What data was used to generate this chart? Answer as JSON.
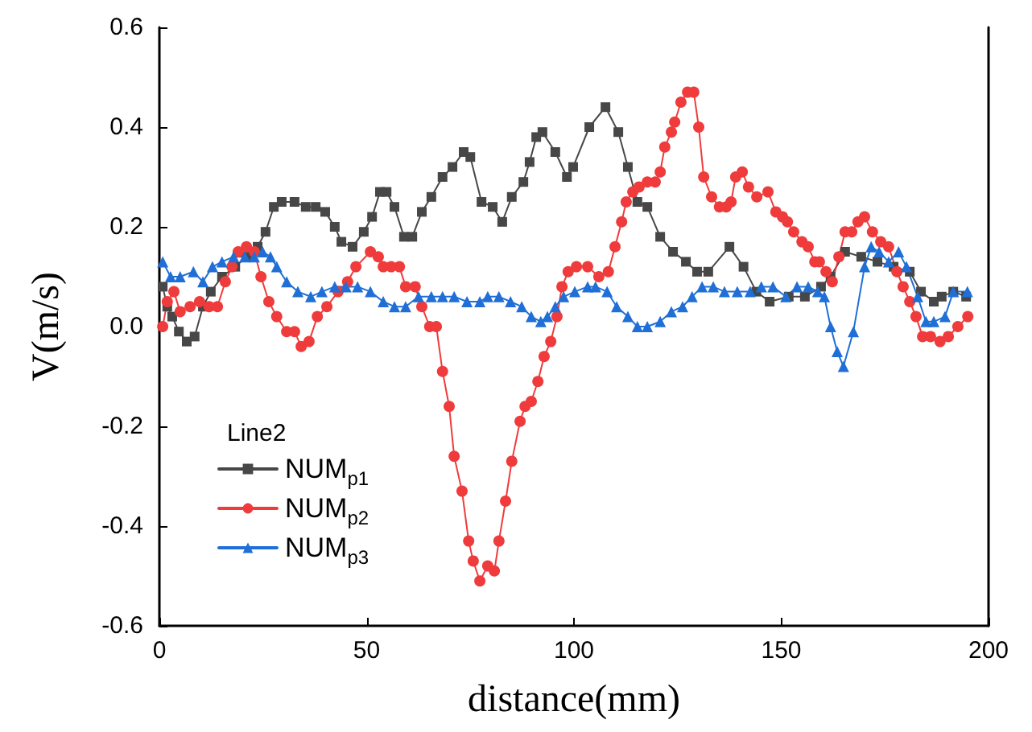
{
  "chart_data": {
    "type": "line",
    "xlabel": "distance(mm)",
    "ylabel": "V(m/s)",
    "legend_title": "Line2",
    "legend": "left",
    "grid": false,
    "xlim": [
      0,
      200
    ],
    "xticks": [
      0,
      50,
      100,
      150,
      200
    ],
    "ylim": [
      -0.6,
      0.6
    ],
    "yticks": [
      {
        "value": -0.6,
        "label": "-0.6"
      },
      {
        "value": -0.4,
        "label": "-0.4"
      },
      {
        "value": -0.2,
        "label": "-0.2"
      },
      {
        "value": 0,
        "label": "0.0"
      },
      {
        "value": 0.2,
        "label": "0.2"
      },
      {
        "value": 0.4,
        "label": "0.4"
      },
      {
        "value": 0.6,
        "label": "0.6"
      }
    ],
    "series": [
      {
        "name": "NUM$_{p1}$",
        "color": "#474747",
        "marker": "square",
        "x": [
          0.8,
          1.9,
          3.1,
          4.7,
          6.6,
          8.5,
          10.5,
          12.4,
          15.1,
          18.3,
          21.0,
          23.7,
          25.6,
          27.6,
          29.5,
          32.6,
          35.3,
          37.7,
          40.0,
          42.3,
          43.9,
          46.6,
          49.3,
          51.3,
          53.2,
          54.8,
          56.7,
          59.0,
          61.0,
          63.3,
          65.6,
          68.3,
          70.7,
          73.4,
          75.0,
          77.7,
          80.4,
          82.7,
          85.0,
          87.8,
          89.3,
          90.9,
          92.4,
          95.5,
          98.3,
          99.8,
          103.7,
          107.6,
          110.7,
          113.0,
          115.3,
          117.7,
          120.8,
          123.9,
          127.0,
          129.7,
          132.4,
          137.5,
          140.9,
          144.0,
          147.2,
          151.8,
          155.7,
          159.6,
          161.9,
          165.4,
          169.3,
          173.2,
          177.1,
          181.0,
          183.7,
          186.8,
          188.7,
          191.5,
          194.6
        ],
        "values": [
          0.08,
          0.04,
          0.02,
          -0.01,
          -0.03,
          -0.02,
          0.04,
          0.07,
          0.1,
          0.12,
          0.14,
          0.16,
          0.19,
          0.24,
          0.25,
          0.25,
          0.24,
          0.24,
          0.23,
          0.2,
          0.17,
          0.16,
          0.19,
          0.22,
          0.27,
          0.27,
          0.24,
          0.18,
          0.18,
          0.23,
          0.26,
          0.3,
          0.32,
          0.35,
          0.34,
          0.25,
          0.24,
          0.21,
          0.26,
          0.29,
          0.33,
          0.38,
          0.39,
          0.35,
          0.3,
          0.32,
          0.4,
          0.44,
          0.39,
          0.32,
          0.25,
          0.24,
          0.18,
          0.15,
          0.13,
          0.11,
          0.11,
          0.16,
          0.12,
          0.07,
          0.05,
          0.06,
          0.06,
          0.08,
          0.1,
          0.15,
          0.14,
          0.13,
          0.12,
          0.11,
          0.07,
          0.05,
          0.06,
          0.07,
          0.06
        ]
      },
      {
        "name": "NUM$_{p2}$",
        "color": "#ef3b3b",
        "marker": "circle",
        "x": [
          0.8,
          1.9,
          3.5,
          5.0,
          7.4,
          9.7,
          12.0,
          14.0,
          15.9,
          17.5,
          19.0,
          21.0,
          22.9,
          24.5,
          26.4,
          28.3,
          30.7,
          32.6,
          34.2,
          36.1,
          38.1,
          40.4,
          43.1,
          45.4,
          47.4,
          50.9,
          52.8,
          54.0,
          55.9,
          57.9,
          59.4,
          61.7,
          63.3,
          65.2,
          66.8,
          68.3,
          69.9,
          71.1,
          73.0,
          74.6,
          75.7,
          77.3,
          79.2,
          80.8,
          81.9,
          83.5,
          85.0,
          87.0,
          88.2,
          89.7,
          91.3,
          92.8,
          94.4,
          95.9,
          97.1,
          98.6,
          100.6,
          103.3,
          106.0,
          108.3,
          109.9,
          111.5,
          112.6,
          114.2,
          115.7,
          117.7,
          119.6,
          120.8,
          121.9,
          123.5,
          124.3,
          125.8,
          127.4,
          128.9,
          130.1,
          131.3,
          133.2,
          135.1,
          136.7,
          137.9,
          139.0,
          140.6,
          142.1,
          144.1,
          146.8,
          148.7,
          150.3,
          151.5,
          153.0,
          155.0,
          156.5,
          158.1,
          159.2,
          160.8,
          162.3,
          163.9,
          165.4,
          167.0,
          168.5,
          170.1,
          172.0,
          174.0,
          175.9,
          177.9,
          179.4,
          181.0,
          182.5,
          184.1,
          186.0,
          188.3,
          190.3,
          192.6,
          195.0
        ],
        "values": [
          0.0,
          0.05,
          0.07,
          0.03,
          0.04,
          0.05,
          0.04,
          0.04,
          0.09,
          0.12,
          0.15,
          0.16,
          0.15,
          0.1,
          0.05,
          0.02,
          -0.01,
          -0.01,
          -0.04,
          -0.03,
          0.02,
          0.04,
          0.07,
          0.09,
          0.12,
          0.15,
          0.14,
          0.12,
          0.12,
          0.12,
          0.08,
          0.08,
          0.04,
          0.0,
          0.0,
          -0.09,
          -0.16,
          -0.26,
          -0.33,
          -0.43,
          -0.47,
          -0.51,
          -0.48,
          -0.49,
          -0.43,
          -0.35,
          -0.27,
          -0.19,
          -0.16,
          -0.15,
          -0.11,
          -0.06,
          -0.03,
          0.02,
          0.08,
          0.11,
          0.12,
          0.12,
          0.1,
          0.11,
          0.16,
          0.21,
          0.25,
          0.27,
          0.28,
          0.29,
          0.29,
          0.31,
          0.36,
          0.39,
          0.41,
          0.45,
          0.47,
          0.47,
          0.4,
          0.3,
          0.26,
          0.24,
          0.24,
          0.25,
          0.3,
          0.31,
          0.28,
          0.26,
          0.27,
          0.23,
          0.22,
          0.21,
          0.19,
          0.17,
          0.16,
          0.13,
          0.13,
          0.11,
          0.09,
          0.14,
          0.19,
          0.19,
          0.21,
          0.22,
          0.19,
          0.17,
          0.16,
          0.11,
          0.08,
          0.05,
          0.02,
          -0.02,
          -0.02,
          -0.03,
          -0.02,
          0.0,
          0.02
        ]
      },
      {
        "name": "NUM$_{p3}$",
        "color": "#1f6fd6",
        "marker": "triangle",
        "x": [
          0.8,
          2.7,
          5.0,
          8.2,
          10.5,
          12.8,
          15.1,
          17.9,
          20.6,
          22.9,
          24.9,
          26.8,
          28.3,
          30.7,
          33.4,
          36.5,
          39.2,
          42.3,
          45.0,
          47.8,
          50.9,
          54.0,
          56.7,
          59.4,
          62.5,
          65.6,
          68.3,
          71.1,
          74.2,
          77.3,
          79.2,
          81.9,
          84.7,
          87.4,
          89.7,
          92.0,
          93.6,
          95.5,
          97.5,
          100.2,
          103.3,
          105.2,
          108.0,
          110.3,
          113.0,
          115.3,
          117.7,
          120.8,
          123.5,
          126.2,
          128.5,
          130.9,
          133.6,
          136.3,
          139.4,
          142.5,
          145.2,
          148.0,
          151.1,
          153.8,
          156.5,
          158.8,
          160.4,
          161.9,
          163.5,
          165.0,
          167.4,
          170.1,
          171.7,
          173.6,
          175.9,
          178.3,
          180.2,
          182.9,
          184.9,
          186.8,
          189.5,
          191.5,
          194.9
        ],
        "values": [
          0.13,
          0.1,
          0.1,
          0.11,
          0.09,
          0.12,
          0.13,
          0.14,
          0.14,
          0.14,
          0.15,
          0.14,
          0.12,
          0.09,
          0.07,
          0.06,
          0.07,
          0.08,
          0.08,
          0.08,
          0.07,
          0.05,
          0.04,
          0.04,
          0.06,
          0.06,
          0.06,
          0.06,
          0.05,
          0.05,
          0.06,
          0.06,
          0.05,
          0.04,
          0.02,
          0.01,
          0.02,
          0.04,
          0.06,
          0.07,
          0.08,
          0.08,
          0.07,
          0.04,
          0.02,
          0.0,
          0.0,
          0.01,
          0.03,
          0.04,
          0.06,
          0.08,
          0.08,
          0.07,
          0.07,
          0.07,
          0.08,
          0.08,
          0.06,
          0.08,
          0.08,
          0.07,
          0.06,
          0.0,
          -0.05,
          -0.08,
          -0.01,
          0.12,
          0.16,
          0.15,
          0.13,
          0.15,
          0.12,
          0.06,
          0.01,
          0.01,
          0.02,
          0.07,
          0.07
        ]
      }
    ]
  }
}
